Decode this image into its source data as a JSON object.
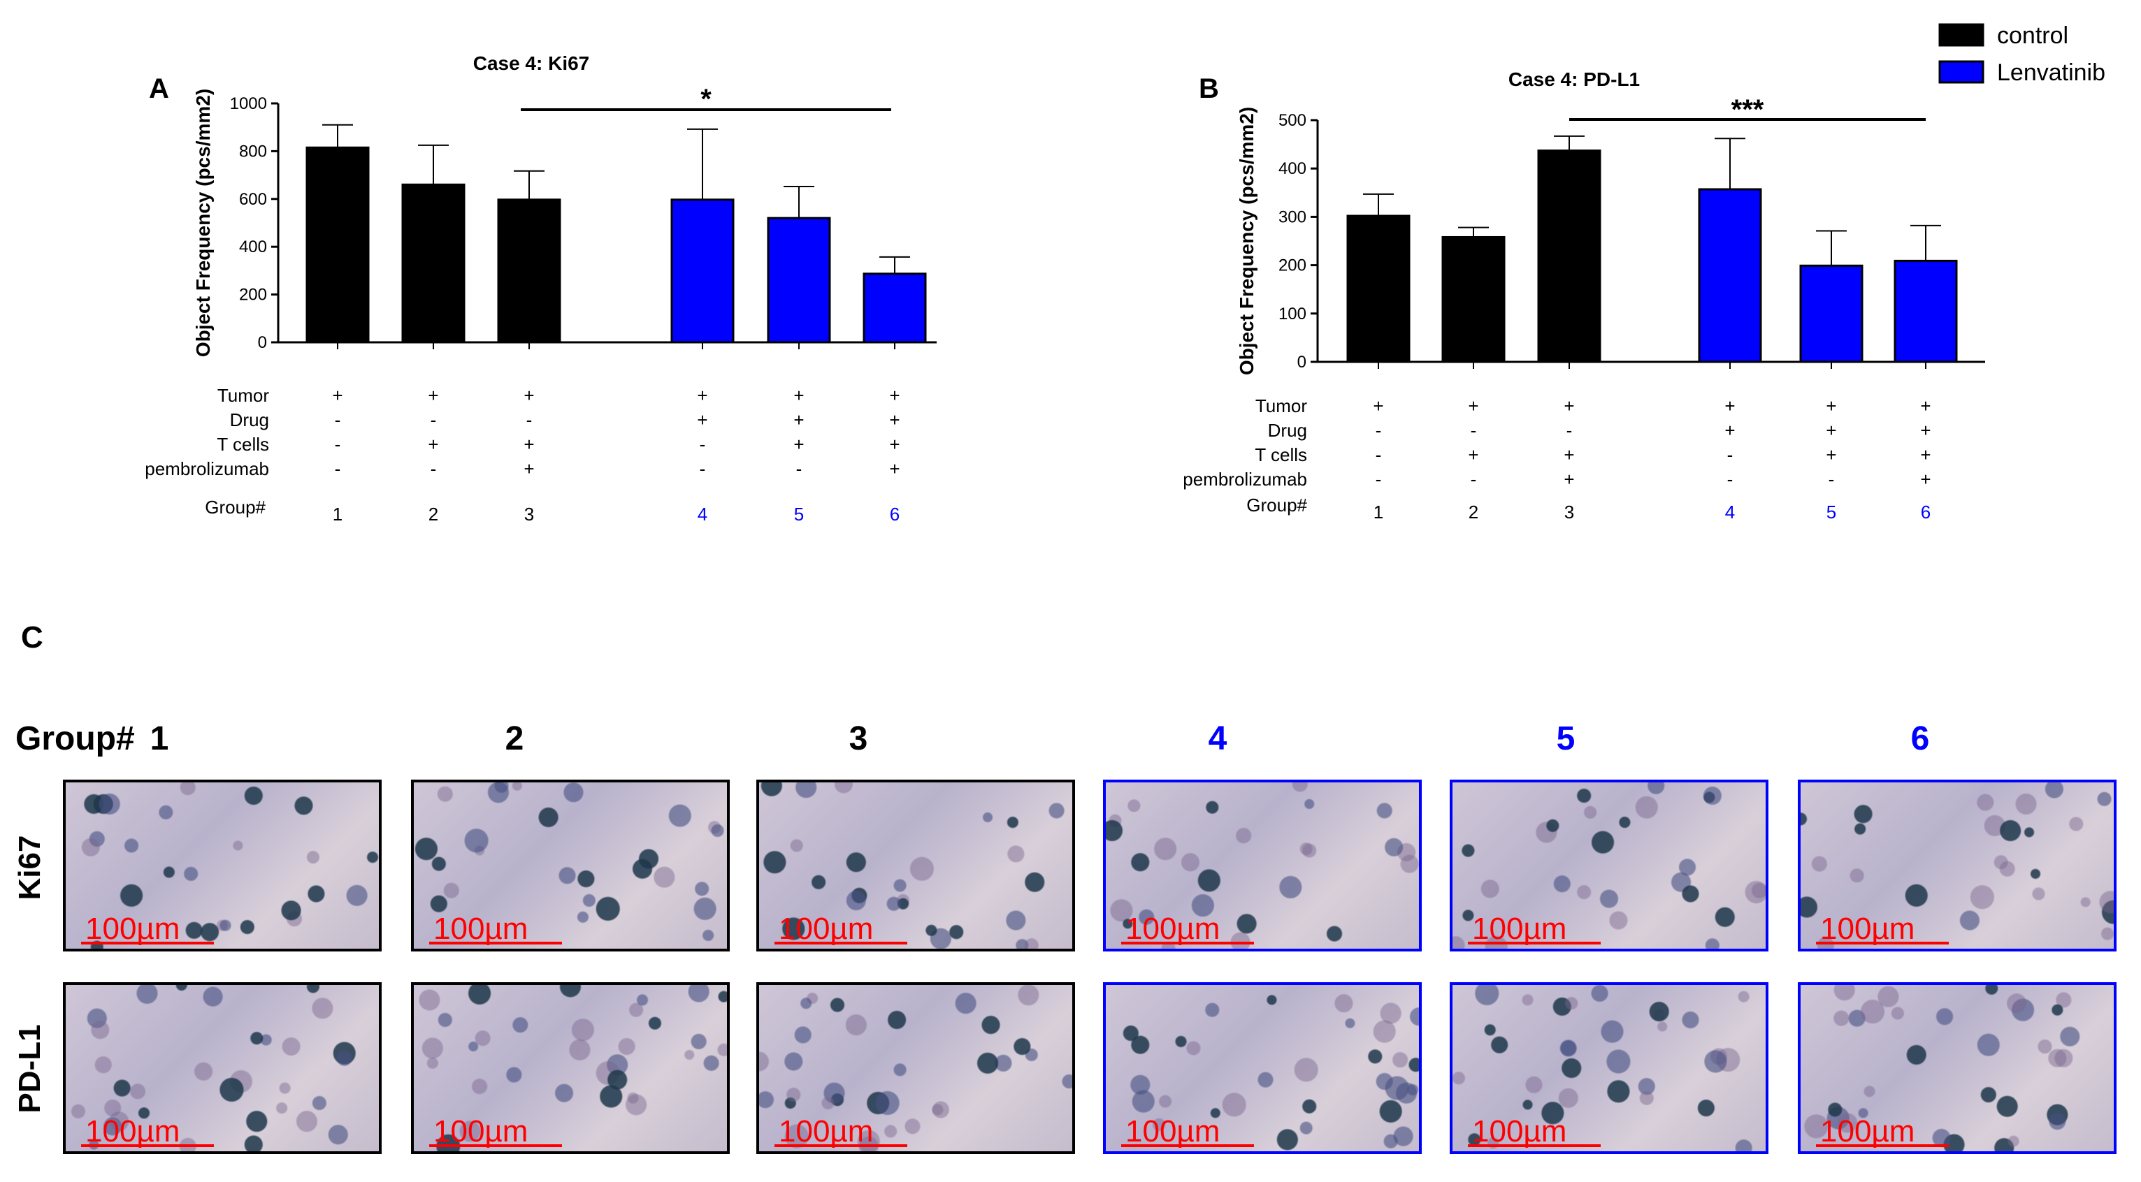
{
  "legend": [
    {
      "label": "control",
      "color": "#000000"
    },
    {
      "label": "Lenvatinib",
      "color": "#0000ff"
    }
  ],
  "chart_data": [
    {
      "panel": "A",
      "type": "bar",
      "title": "Case 4: Ki67",
      "ylabel": "Object Frequency (pcs/mm2)",
      "ylim": [
        0,
        1000
      ],
      "yticks": [
        "0",
        "200",
        "400",
        "600",
        "800",
        "1000"
      ],
      "groups": [
        "1",
        "2",
        "3",
        "4",
        "5",
        "6"
      ],
      "values": [
        815,
        660,
        597,
        597,
        520,
        287
      ],
      "errors": [
        95,
        165,
        120,
        295,
        132,
        70
      ],
      "series_of_group": [
        "control",
        "control",
        "control",
        "Lenvatinib",
        "Lenvatinib",
        "Lenvatinib"
      ],
      "significance": {
        "label": "*",
        "from_group": "3",
        "to_group": "6"
      },
      "conditions": [
        {
          "name": "Tumor",
          "values": [
            "+",
            "+",
            "+",
            "+",
            "+",
            "+"
          ]
        },
        {
          "name": "Drug",
          "values": [
            "-",
            "-",
            "-",
            "+",
            "+",
            "+"
          ]
        },
        {
          "name": "T cells",
          "values": [
            "-",
            "+",
            "+",
            "-",
            "+",
            "+"
          ]
        },
        {
          "name": "pembrolizumab",
          "values": [
            "-",
            "-",
            "+",
            "-",
            "-",
            "+"
          ]
        }
      ],
      "group_label": "Group#"
    },
    {
      "panel": "B",
      "type": "bar",
      "title": "Case 4: PD-L1",
      "ylabel": "Object Frequency (pcs/mm2)",
      "ylim": [
        0,
        500
      ],
      "yticks": [
        "0",
        "100",
        "200",
        "300",
        "400",
        "500"
      ],
      "groups": [
        "1",
        "2",
        "3",
        "4",
        "5",
        "6"
      ],
      "values": [
        302,
        258,
        437,
        357,
        199,
        209
      ],
      "errors": [
        45,
        20,
        30,
        105,
        72,
        73
      ],
      "series_of_group": [
        "control",
        "control",
        "control",
        "Lenvatinib",
        "Lenvatinib",
        "Lenvatinib"
      ],
      "significance": {
        "label": "***",
        "from_group": "3",
        "to_group": "6"
      },
      "conditions": [
        {
          "name": "Tumor",
          "values": [
            "+",
            "+",
            "+",
            "+",
            "+",
            "+"
          ]
        },
        {
          "name": "Drug",
          "values": [
            "-",
            "-",
            "-",
            "+",
            "+",
            "+"
          ]
        },
        {
          "name": "T cells",
          "values": [
            "-",
            "+",
            "+",
            "-",
            "+",
            "+"
          ]
        },
        {
          "name": "pembrolizumab",
          "values": [
            "-",
            "-",
            "+",
            "-",
            "-",
            "+"
          ]
        }
      ],
      "group_label": "Group#"
    }
  ],
  "panel_c": {
    "letter": "C",
    "header_label": "Group#",
    "groups": [
      {
        "label": "1",
        "treatment": "control"
      },
      {
        "label": "2",
        "treatment": "control"
      },
      {
        "label": "3",
        "treatment": "control"
      },
      {
        "label": "4",
        "treatment": "Lenvatinib"
      },
      {
        "label": "5",
        "treatment": "Lenvatinib"
      },
      {
        "label": "6",
        "treatment": "Lenvatinib"
      }
    ],
    "rows": [
      {
        "stain": "Ki67"
      },
      {
        "stain": "PD-L1"
      }
    ],
    "scale_bar_label": "100µm",
    "group_colors": {
      "control": "#000000",
      "Lenvatinib": "#0000ff"
    },
    "scale_color": "#ff0000"
  }
}
